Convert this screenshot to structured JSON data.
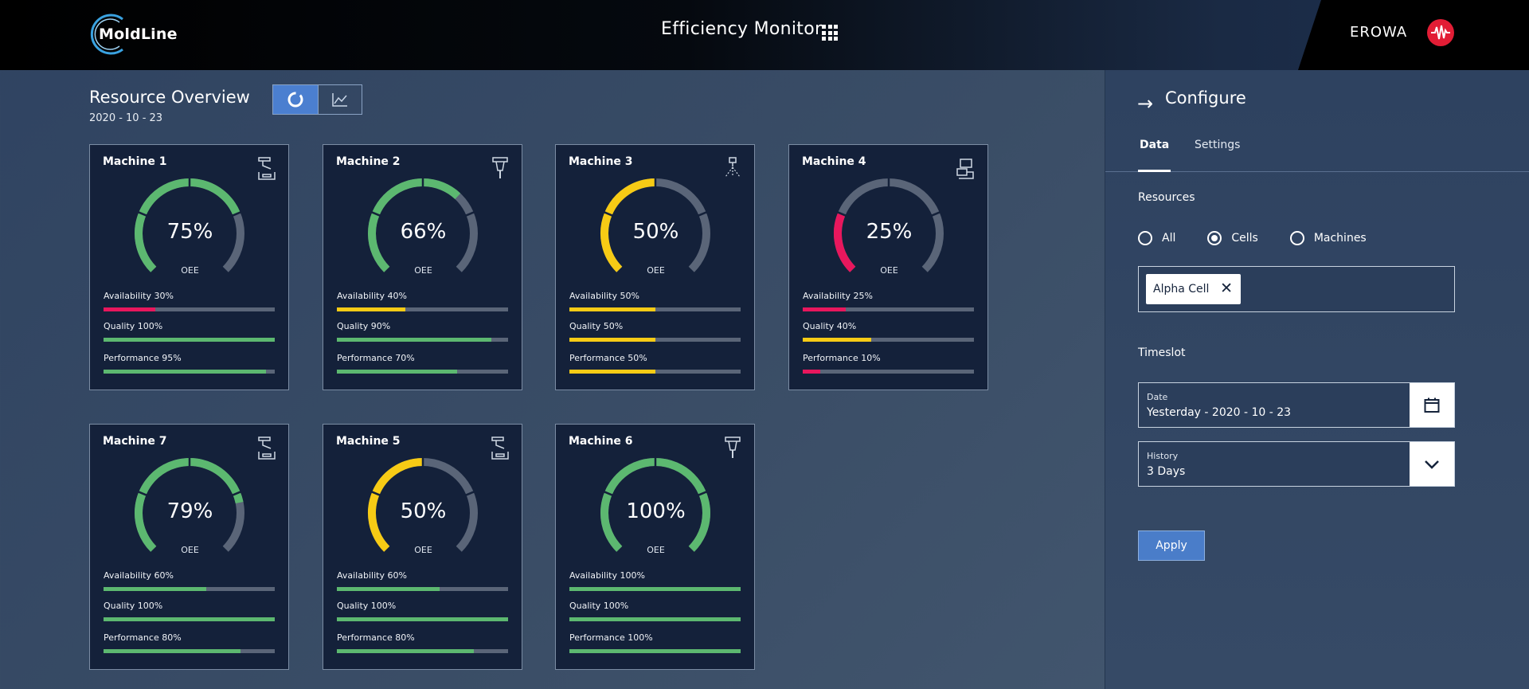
{
  "header": {
    "logo_text": "MoldLine",
    "app_title": "Efficiency Monitor",
    "brand": "EROWA"
  },
  "overview": {
    "title": "Resource Overview",
    "date": "2020 - 10 - 23"
  },
  "colors": {
    "green": "#5cb870",
    "yellow": "#f7cb15",
    "red": "#e8175d",
    "track": "#5a6578",
    "card_bg": "#14213a",
    "accent": "#4b7fd0"
  },
  "machines": [
    {
      "name": "Machine 1",
      "icon": "press-icon",
      "oee": "75%",
      "oee_value": 0.75,
      "color": "green",
      "availability_label": "Availability 30%",
      "availability": 0.3,
      "availability_color": "red",
      "quality_label": "Quality 100%",
      "quality": 1.0,
      "quality_color": "green",
      "performance_label": "Performance 95%",
      "performance": 0.95,
      "performance_color": "green"
    },
    {
      "name": "Machine 2",
      "icon": "mill-icon",
      "oee": "66%",
      "oee_value": 0.66,
      "color": "green",
      "availability_label": "Availability 40%",
      "availability": 0.4,
      "availability_color": "yellow",
      "quality_label": "Quality 90%",
      "quality": 0.9,
      "quality_color": "green",
      "performance_label": "Performance 70%",
      "performance": 0.7,
      "performance_color": "green"
    },
    {
      "name": "Machine 3",
      "icon": "edm-icon",
      "oee": "50%",
      "oee_value": 0.5,
      "color": "yellow",
      "availability_label": "Availability 50%",
      "availability": 0.5,
      "availability_color": "yellow",
      "quality_label": "Quality 50%",
      "quality": 0.5,
      "quality_color": "yellow",
      "performance_label": "Performance 50%",
      "performance": 0.5,
      "performance_color": "yellow"
    },
    {
      "name": "Machine 4",
      "icon": "robot-icon",
      "oee": "25%",
      "oee_value": 0.25,
      "color": "red",
      "availability_label": "Availability 25%",
      "availability": 0.25,
      "availability_color": "red",
      "quality_label": "Quality 40%",
      "quality": 0.4,
      "quality_color": "yellow",
      "performance_label": "Performance 10%",
      "performance": 0.1,
      "performance_color": "red"
    },
    {
      "name": "Machine 7",
      "icon": "press-icon",
      "oee": "79%",
      "oee_value": 0.79,
      "color": "green",
      "availability_label": "Availability 60%",
      "availability": 0.6,
      "availability_color": "green",
      "quality_label": "Quality 100%",
      "quality": 1.0,
      "quality_color": "green",
      "performance_label": "Performance 80%",
      "performance": 0.8,
      "performance_color": "green"
    },
    {
      "name": "Machine 5",
      "icon": "press-icon",
      "oee": "50%",
      "oee_value": 0.5,
      "color": "yellow",
      "availability_label": "Availability 60%",
      "availability": 0.6,
      "availability_color": "green",
      "quality_label": "Quality 100%",
      "quality": 1.0,
      "quality_color": "green",
      "performance_label": "Performance 80%",
      "performance": 0.8,
      "performance_color": "green"
    },
    {
      "name": "Machine 6",
      "icon": "mill-icon",
      "oee": "100%",
      "oee_value": 1.0,
      "color": "green",
      "availability_label": "Availability 100%",
      "availability": 1.0,
      "availability_color": "green",
      "quality_label": "Quality 100%",
      "quality": 1.0,
      "quality_color": "green",
      "performance_label": "Performance 100%",
      "performance": 1.0,
      "performance_color": "green"
    }
  ],
  "oee_label": "OEE",
  "panel": {
    "title": "Configure",
    "tabs": [
      "Data",
      "Settings"
    ],
    "resources_label": "Resources",
    "radios": [
      "All",
      "Cells",
      "Machines"
    ],
    "selected_radio": "Cells",
    "chip": "Alpha Cell",
    "timeslot_label": "Timeslot",
    "date_label": "Date",
    "date_value": "Yesterday - 2020 - 10 - 23",
    "history_label": "History",
    "history_value": "3 Days",
    "apply_label": "Apply"
  }
}
